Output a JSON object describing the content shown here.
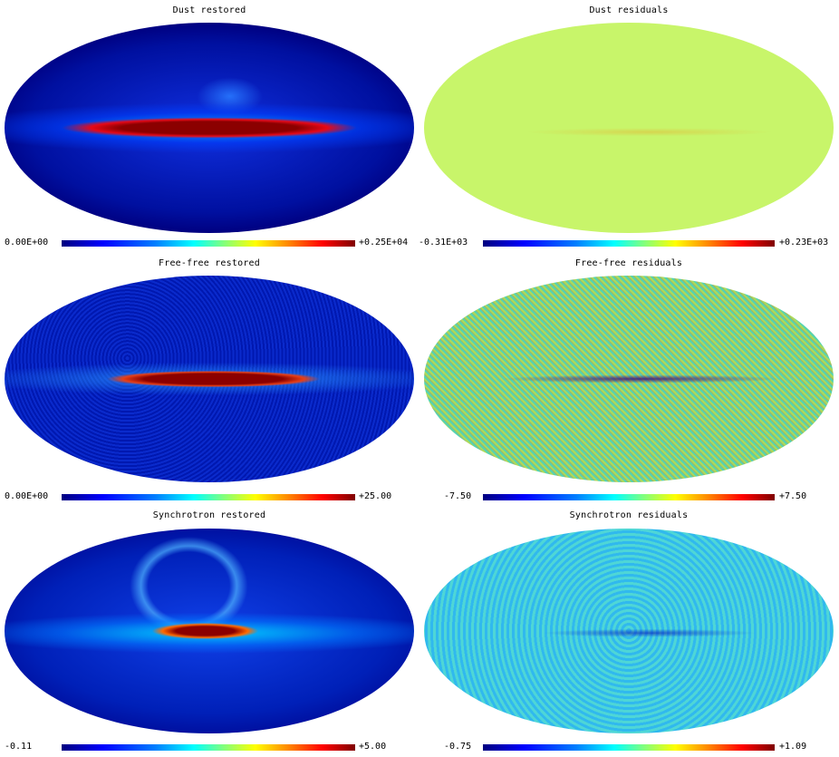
{
  "panels": [
    {
      "title": "Dust restored",
      "min": "0.00E+00",
      "max": "+0.25E+04"
    },
    {
      "title": "Dust residuals",
      "min": "-0.31E+03",
      "max": "+0.23E+03"
    },
    {
      "title": "Free-free restored",
      "min": "0.00E+00",
      "max": "+25.00"
    },
    {
      "title": "Free-free residuals",
      "min": "-7.50",
      "max": "+7.50"
    },
    {
      "title": "Synchrotron restored",
      "min": "-0.11",
      "max": "+5.00"
    },
    {
      "title": "Synchrotron residuals",
      "min": "-0.75",
      "max": "+1.09"
    }
  ]
}
